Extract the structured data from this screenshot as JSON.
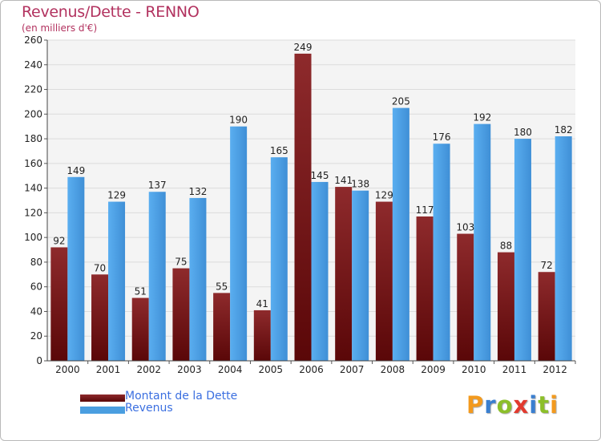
{
  "header": {
    "title": "Revenus/Dette - RENNO",
    "subtitle": "(en milliers d'€)"
  },
  "chart_data": {
    "type": "bar",
    "title": "Revenus/Dette - RENNO",
    "ylabel": "(en milliers d'€)",
    "xlabel": "",
    "ylim": [
      0,
      260
    ],
    "yticks": [
      0,
      20,
      40,
      60,
      80,
      100,
      120,
      140,
      160,
      180,
      200,
      220,
      240,
      260
    ],
    "grid": true,
    "legend_position": "bottom-left",
    "categories": [
      "2000",
      "2001",
      "2002",
      "2003",
      "2004",
      "2005",
      "2006",
      "2007",
      "2008",
      "2009",
      "2010",
      "2011",
      "2012"
    ],
    "series": [
      {
        "name": "Montant de la Dette",
        "color": "#7a1518",
        "values": [
          92,
          70,
          51,
          75,
          55,
          41,
          249,
          141,
          129,
          117,
          103,
          88,
          72
        ]
      },
      {
        "name": "Revenus",
        "color": "#4a9ee0",
        "values": [
          149,
          129,
          137,
          132,
          190,
          165,
          145,
          138,
          205,
          176,
          192,
          180,
          182
        ]
      }
    ]
  },
  "legend": {
    "items": [
      {
        "label": "Montant de la Dette",
        "color": "#7a1518"
      },
      {
        "label": "Revenus",
        "color": "#4a9ee0"
      }
    ]
  },
  "logo": {
    "text": "Proxiti"
  }
}
